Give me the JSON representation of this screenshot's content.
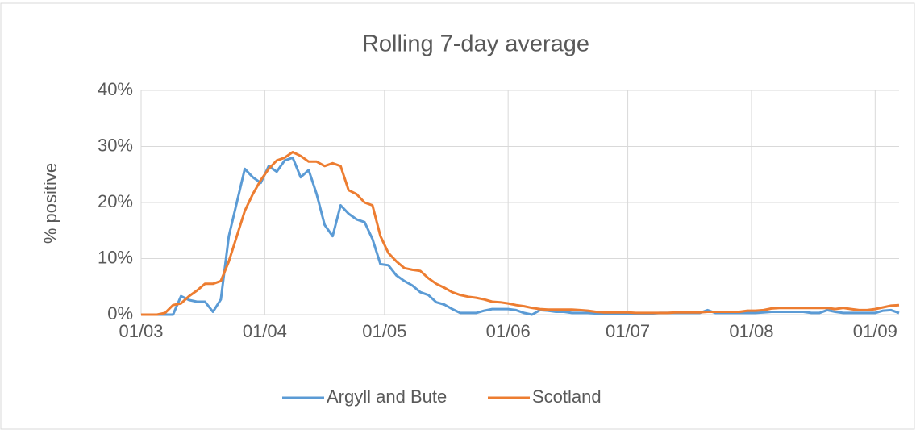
{
  "chart_data": {
    "type": "line",
    "title": "Rolling 7-day average",
    "y_label": "% positive",
    "x": [
      "01/03",
      "03/03",
      "05/03",
      "07/03",
      "09/03",
      "11/03",
      "13/03",
      "15/03",
      "17/03",
      "19/03",
      "21/03",
      "23/03",
      "25/03",
      "27/03",
      "29/03",
      "31/03",
      "02/04",
      "04/04",
      "06/04",
      "08/04",
      "10/04",
      "12/04",
      "14/04",
      "16/04",
      "18/04",
      "20/04",
      "22/04",
      "24/04",
      "26/04",
      "28/04",
      "30/04",
      "02/05",
      "04/05",
      "06/05",
      "08/05",
      "10/05",
      "12/05",
      "14/05",
      "16/05",
      "18/05",
      "20/05",
      "22/05",
      "24/05",
      "26/05",
      "28/05",
      "30/05",
      "01/06",
      "03/06",
      "05/06",
      "07/06",
      "09/06",
      "11/06",
      "13/06",
      "15/06",
      "17/06",
      "19/06",
      "21/06",
      "23/06",
      "25/06",
      "27/06",
      "29/06",
      "01/07",
      "03/07",
      "05/07",
      "07/07",
      "09/07",
      "11/07",
      "13/07",
      "15/07",
      "17/07",
      "19/07",
      "21/07",
      "23/07",
      "25/07",
      "27/07",
      "29/07",
      "31/07",
      "02/08",
      "04/08",
      "06/08",
      "08/08",
      "10/08",
      "12/08",
      "14/08",
      "16/08",
      "18/08",
      "20/08",
      "22/08",
      "24/08",
      "26/08",
      "28/08",
      "30/08",
      "01/09",
      "03/09",
      "05/09",
      "07/09"
    ],
    "series": [
      {
        "name": "Argyll and Bute",
        "color": "#5b9bd5",
        "values": [
          0,
          0,
          0,
          0,
          0,
          3.3,
          2.6,
          2.3,
          2.3,
          0.5,
          2.7,
          14,
          20,
          26,
          24.5,
          23.5,
          26.5,
          25.5,
          27.5,
          28,
          24.5,
          25.8,
          21.5,
          16,
          14,
          19.5,
          18,
          17,
          16.5,
          13.5,
          9,
          8.8,
          7,
          6,
          5.2,
          4,
          3.5,
          2.2,
          1.8,
          1,
          0.3,
          0.3,
          0.3,
          0.7,
          1,
          1,
          1,
          0.8,
          0.3,
          0,
          0.8,
          0.7,
          0.5,
          0.5,
          0.3,
          0.3,
          0.3,
          0.2,
          0.2,
          0.2,
          0.2,
          0.2,
          0.2,
          0.2,
          0.2,
          0.3,
          0.3,
          0.3,
          0.3,
          0.3,
          0.3,
          0.8,
          0.3,
          0.3,
          0.3,
          0.3,
          0.3,
          0.3,
          0.4,
          0.5,
          0.5,
          0.5,
          0.5,
          0.5,
          0.3,
          0.3,
          0.8,
          0.5,
          0.3,
          0.3,
          0.3,
          0.3,
          0.3,
          0.7,
          0.8,
          0.3
        ]
      },
      {
        "name": "Scotland",
        "color": "#ed7d31",
        "values": [
          0,
          0,
          0,
          0.3,
          1.7,
          2,
          3.3,
          4.3,
          5.5,
          5.5,
          6,
          9.5,
          14,
          18.5,
          21.5,
          24,
          26,
          27.5,
          28,
          29,
          28.3,
          27.3,
          27.3,
          26.5,
          27,
          26.5,
          22.2,
          21.5,
          20,
          19.5,
          14,
          11,
          9.5,
          8.3,
          8,
          7.8,
          6.5,
          5.5,
          4.8,
          4,
          3.5,
          3.2,
          3,
          2.7,
          2.3,
          2.2,
          2,
          1.7,
          1.5,
          1.2,
          1,
          0.9,
          0.9,
          0.9,
          0.9,
          0.8,
          0.7,
          0.5,
          0.4,
          0.4,
          0.4,
          0.4,
          0.3,
          0.3,
          0.3,
          0.3,
          0.3,
          0.4,
          0.4,
          0.4,
          0.4,
          0.5,
          0.5,
          0.5,
          0.5,
          0.5,
          0.7,
          0.7,
          0.8,
          1.1,
          1.2,
          1.2,
          1.2,
          1.2,
          1.2,
          1.2,
          1.2,
          1,
          1.2,
          1,
          0.8,
          0.8,
          1,
          1.3,
          1.6,
          1.7
        ]
      }
    ],
    "xlim": [
      "01/03",
      "07/09"
    ],
    "xticks": [
      "01/03",
      "01/04",
      "01/05",
      "01/06",
      "01/07",
      "01/08",
      "01/09"
    ],
    "ylim": [
      0,
      40
    ],
    "yticks": [
      {
        "value": 0,
        "label": "0%"
      },
      {
        "value": 10,
        "label": "10%"
      },
      {
        "value": 20,
        "label": "20%"
      },
      {
        "value": 30,
        "label": "30%"
      },
      {
        "value": 40,
        "label": "40%"
      }
    ],
    "grid": true,
    "legend": "bottom"
  }
}
